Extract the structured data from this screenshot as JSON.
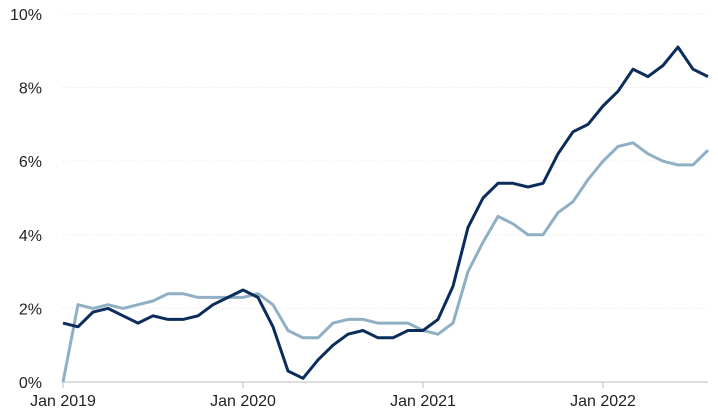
{
  "chart_data": {
    "type": "line",
    "title": "",
    "xlabel": "",
    "ylabel": "",
    "x_tick_labels": [
      "Jan 2019",
      "Jan 2020",
      "Jan 2021",
      "Jan 2022"
    ],
    "y_tick_labels": [
      "0%",
      "2%",
      "4%",
      "6%",
      "8%",
      "10%"
    ],
    "ylim": [
      0,
      10
    ],
    "x_range": [
      "2019-01",
      "2022-08"
    ],
    "grid": {
      "horizontal": true,
      "vertical": false
    },
    "legend": "none",
    "series": [
      {
        "color": "#0b2d5b",
        "x": [
          "2019-01",
          "2019-02",
          "2019-03",
          "2019-04",
          "2019-05",
          "2019-06",
          "2019-07",
          "2019-08",
          "2019-09",
          "2019-10",
          "2019-11",
          "2019-12",
          "2020-01",
          "2020-02",
          "2020-03",
          "2020-04",
          "2020-05",
          "2020-06",
          "2020-07",
          "2020-08",
          "2020-09",
          "2020-10",
          "2020-11",
          "2020-12",
          "2021-01",
          "2021-02",
          "2021-03",
          "2021-04",
          "2021-05",
          "2021-06",
          "2021-07",
          "2021-08",
          "2021-09",
          "2021-10",
          "2021-11",
          "2021-12",
          "2022-01",
          "2022-02",
          "2022-03",
          "2022-04",
          "2022-05",
          "2022-06",
          "2022-07",
          "2022-08"
        ],
        "values": [
          1.6,
          1.5,
          1.9,
          2.0,
          1.8,
          1.6,
          1.8,
          1.7,
          1.7,
          1.8,
          2.1,
          2.3,
          2.5,
          2.3,
          1.5,
          0.3,
          0.1,
          0.6,
          1.0,
          1.3,
          1.4,
          1.2,
          1.2,
          1.4,
          1.4,
          1.7,
          2.6,
          4.2,
          5.0,
          5.4,
          5.4,
          5.3,
          5.4,
          6.2,
          6.8,
          7.0,
          7.5,
          7.9,
          8.5,
          8.3,
          8.6,
          9.1,
          8.5,
          8.3
        ]
      },
      {
        "color": "#8fb0c4",
        "x": [
          "2019-01",
          "2019-02",
          "2019-03",
          "2019-04",
          "2019-05",
          "2019-06",
          "2019-07",
          "2019-08",
          "2019-09",
          "2019-10",
          "2019-11",
          "2019-12",
          "2020-01",
          "2020-02",
          "2020-03",
          "2020-04",
          "2020-05",
          "2020-06",
          "2020-07",
          "2020-08",
          "2020-09",
          "2020-10",
          "2020-11",
          "2020-12",
          "2021-01",
          "2021-02",
          "2021-03",
          "2021-04",
          "2021-05",
          "2021-06",
          "2021-07",
          "2021-08",
          "2021-09",
          "2021-10",
          "2021-11",
          "2021-12",
          "2022-01",
          "2022-02",
          "2022-03",
          "2022-04",
          "2022-05",
          "2022-06",
          "2022-07",
          "2022-08"
        ],
        "values": [
          0.0,
          2.1,
          2.0,
          2.1,
          2.0,
          2.1,
          2.2,
          2.4,
          2.4,
          2.3,
          2.3,
          2.3,
          2.3,
          2.4,
          2.1,
          1.4,
          1.2,
          1.2,
          1.6,
          1.7,
          1.7,
          1.6,
          1.6,
          1.6,
          1.4,
          1.3,
          1.6,
          3.0,
          3.8,
          4.5,
          4.3,
          4.0,
          4.0,
          4.6,
          4.9,
          5.5,
          6.0,
          6.4,
          6.5,
          6.2,
          6.0,
          5.9,
          5.9,
          6.3
        ]
      }
    ]
  }
}
